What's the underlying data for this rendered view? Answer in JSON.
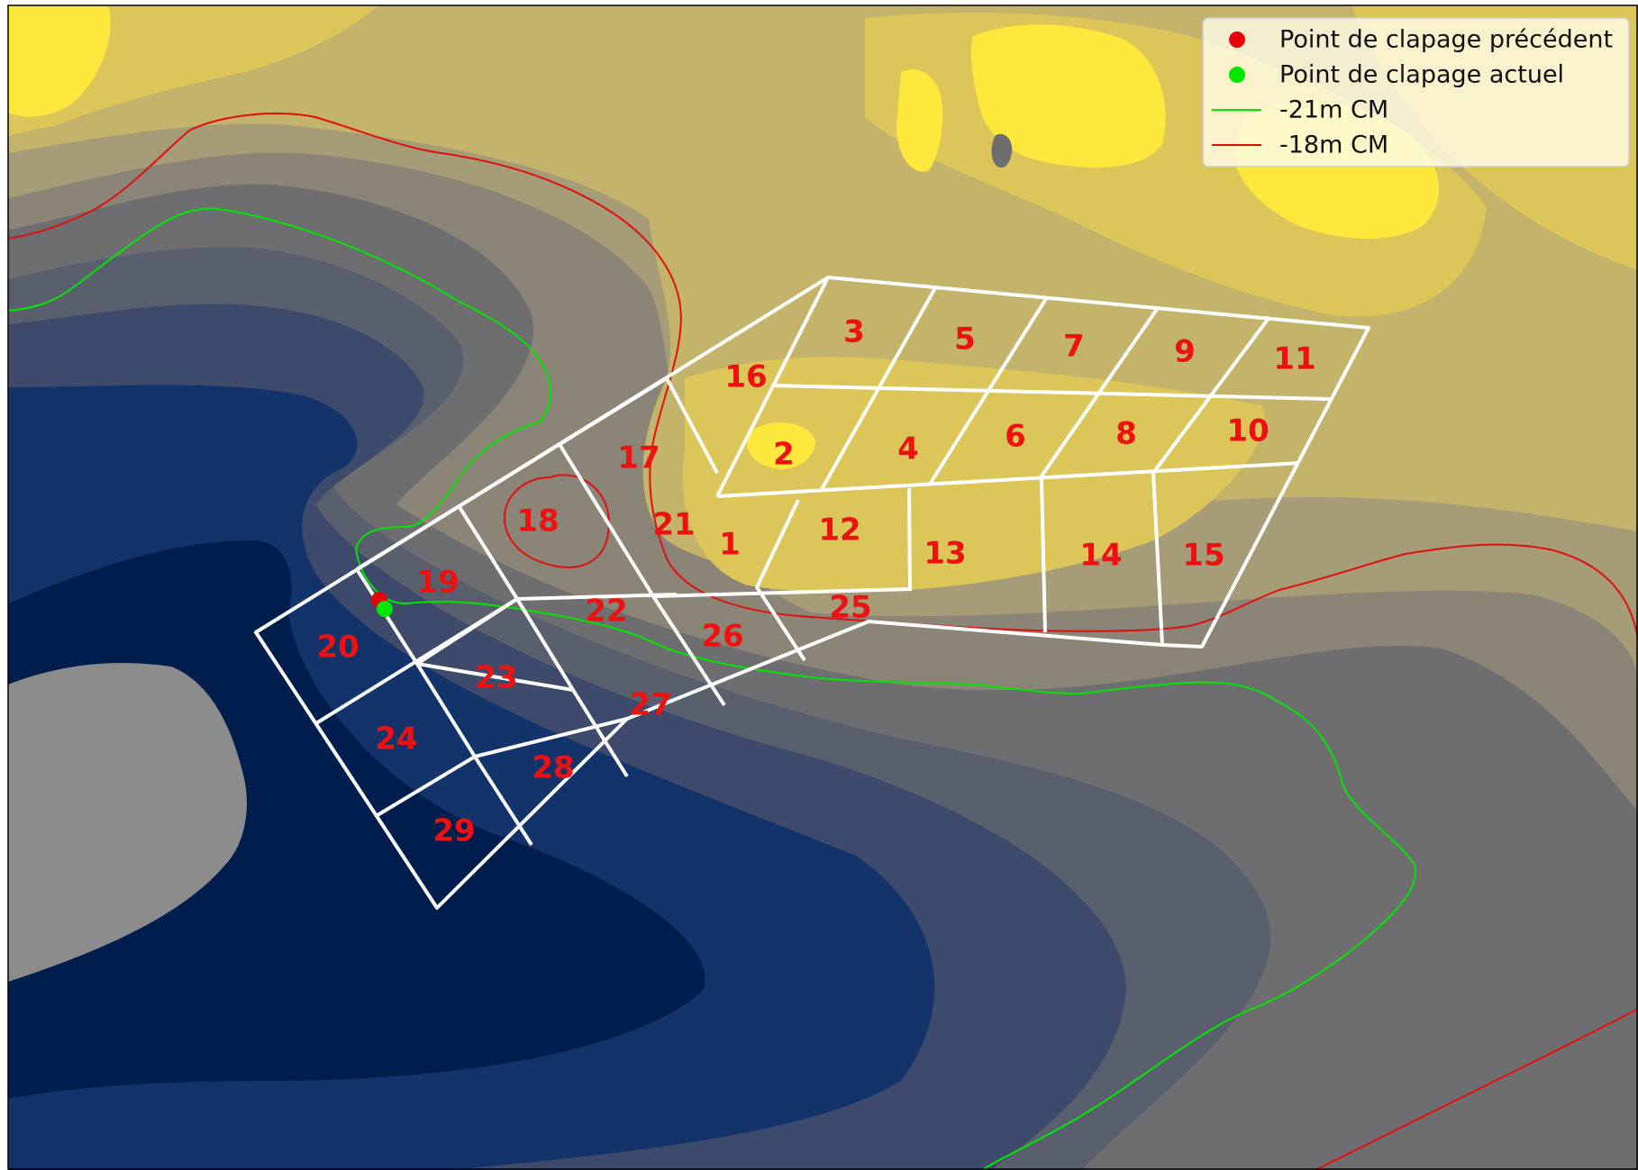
{
  "legend": {
    "items": [
      {
        "label": "Point de clapage précédent",
        "kind": "marker",
        "color": "#e8000b"
      },
      {
        "label": "Point de clapage actuel",
        "kind": "marker",
        "color": "#00e600"
      },
      {
        "label": "-21m CM",
        "kind": "line",
        "color": "#00e600"
      },
      {
        "label": "-18m CM",
        "kind": "line",
        "color": "#e01010"
      }
    ]
  },
  "colors": {
    "depth_levels": [
      "#001e4d",
      "#13336b",
      "#3d4a6b",
      "#5a5f6e",
      "#6e6e70",
      "#8a8576",
      "#a69c78",
      "#c4b36a",
      "#dcc659",
      "#fee83e"
    ],
    "grid": "#ffffff",
    "zone_label": "#ee1111",
    "landmass_gray": "#8c8c8c"
  },
  "zones": [
    "1",
    "2",
    "3",
    "4",
    "5",
    "6",
    "7",
    "8",
    "9",
    "10",
    "11",
    "12",
    "13",
    "14",
    "15",
    "16",
    "17",
    "18",
    "19",
    "20",
    "21",
    "22",
    "23",
    "24",
    "25",
    "26",
    "27",
    "28",
    "29"
  ],
  "markers": [
    {
      "name": "previous",
      "color": "#e8000b"
    },
    {
      "name": "current",
      "color": "#00e600"
    }
  ]
}
